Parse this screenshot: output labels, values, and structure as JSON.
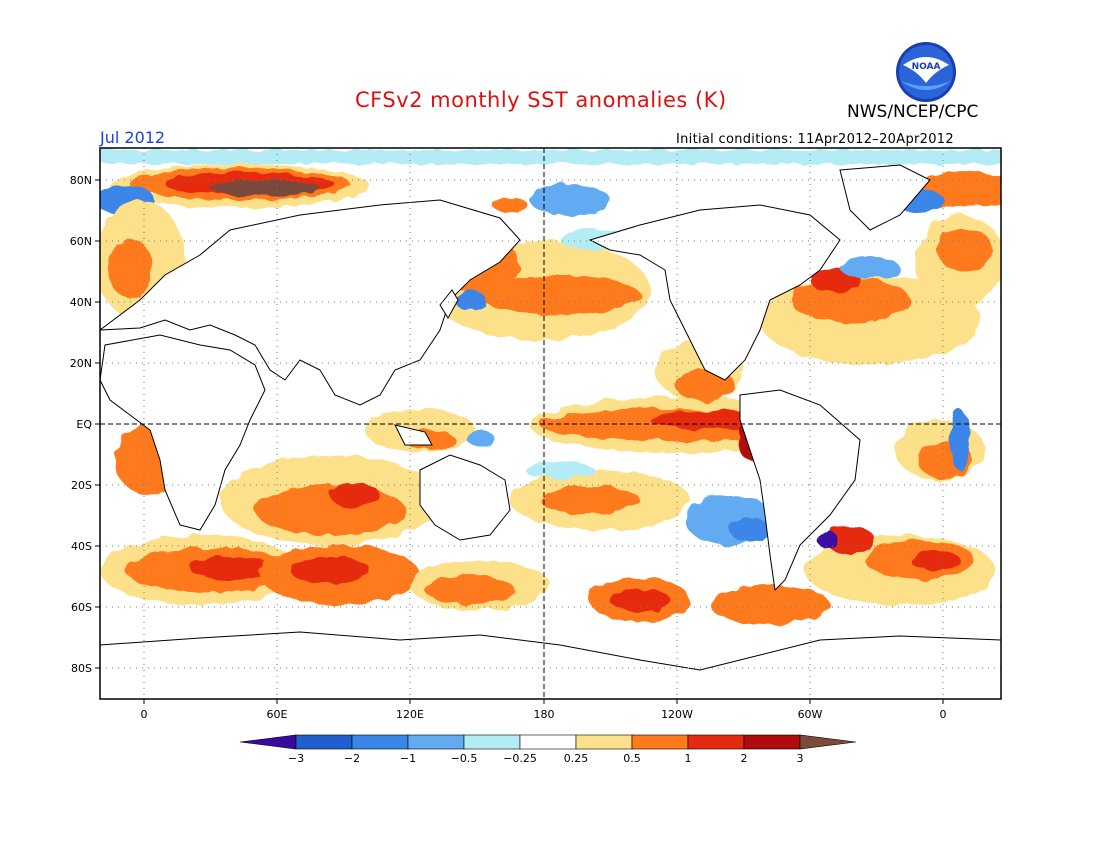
{
  "header": {
    "title": "CFSv2 monthly SST anomalies (K)",
    "month": "Jul 2012",
    "initial_conditions": "Initial conditions: 11Apr2012–20Apr2012",
    "agency": "NWS/NCEP/CPC",
    "logo_text": "NOAA"
  },
  "map": {
    "lat_labels": [
      "80N",
      "60N",
      "40N",
      "20N",
      "EQ",
      "20S",
      "40S",
      "60S",
      "80S"
    ],
    "lon_labels": [
      "0",
      "60E",
      "120E",
      "180",
      "120W",
      "60W",
      "0"
    ]
  },
  "colorbar": {
    "tick_labels": [
      "−3",
      "−2",
      "−1",
      "−0.5",
      "−0.25",
      "0.25",
      "0.5",
      "1",
      "2",
      "3"
    ],
    "colors": [
      "#3a0aa0",
      "#1f5fd0",
      "#3a86e8",
      "#62aaf2",
      "#b4ecf6",
      "#ffffff",
      "#fde08a",
      "#ff7a1a",
      "#e52a10",
      "#b00c0c",
      "#7a4a3a"
    ]
  },
  "colors": {
    "title": "#e01010",
    "month": "#2040e0",
    "land": "#ffffff",
    "coast": "#000000"
  }
}
